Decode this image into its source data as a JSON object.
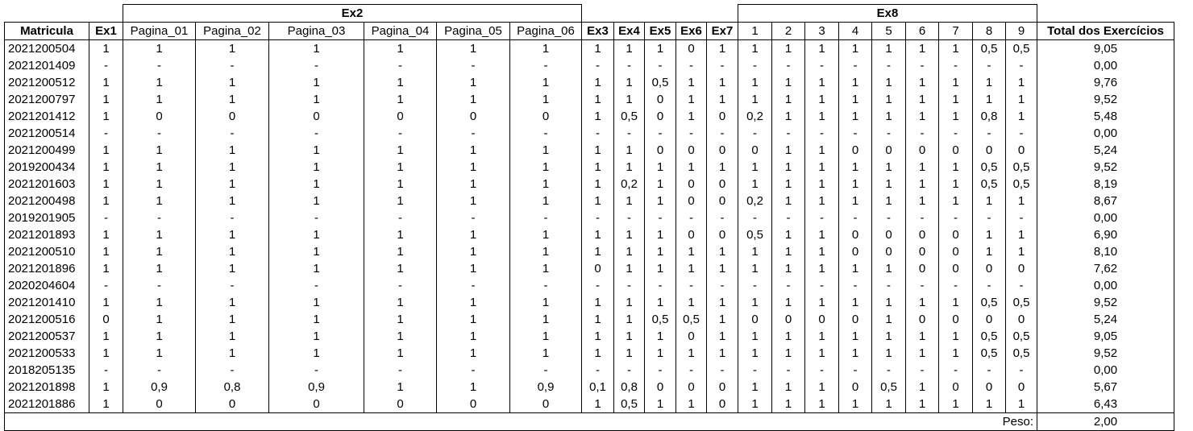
{
  "headers": {
    "ex2_group": "Ex2",
    "ex8_group": "Ex8",
    "columns": [
      "Matricula",
      "Ex1",
      "Pagina_01",
      "Pagina_02",
      "Pagina_03",
      "Pagina_04",
      "Pagina_05",
      "Pagina_06",
      "Ex3",
      "Ex4",
      "Ex5",
      "Ex6",
      "Ex7",
      "1",
      "2",
      "3",
      "4",
      "5",
      "6",
      "7",
      "8",
      "9",
      "Total dos Exercícios"
    ]
  },
  "rows": [
    [
      "2021200504",
      "1",
      "1",
      "1",
      "1",
      "1",
      "1",
      "1",
      "1",
      "1",
      "1",
      "0",
      "1",
      "1",
      "1",
      "1",
      "1",
      "1",
      "1",
      "1",
      "0,5",
      "0,5",
      "9,05"
    ],
    [
      "2021201409",
      "-",
      "-",
      "-",
      "-",
      "-",
      "-",
      "-",
      "-",
      "-",
      "-",
      "-",
      "-",
      "-",
      "-",
      "-",
      "-",
      "-",
      "-",
      "-",
      "-",
      "-",
      "0,00"
    ],
    [
      "2021200512",
      "1",
      "1",
      "1",
      "1",
      "1",
      "1",
      "1",
      "1",
      "1",
      "0,5",
      "1",
      "1",
      "1",
      "1",
      "1",
      "1",
      "1",
      "1",
      "1",
      "1",
      "1",
      "9,76"
    ],
    [
      "2021200797",
      "1",
      "1",
      "1",
      "1",
      "1",
      "1",
      "1",
      "1",
      "1",
      "0",
      "1",
      "1",
      "1",
      "1",
      "1",
      "1",
      "1",
      "1",
      "1",
      "1",
      "1",
      "9,52"
    ],
    [
      "2021201412",
      "1",
      "0",
      "0",
      "0",
      "0",
      "0",
      "0",
      "1",
      "0,5",
      "0",
      "1",
      "0",
      "0,2",
      "1",
      "1",
      "1",
      "1",
      "1",
      "1",
      "0,8",
      "1",
      "5,48"
    ],
    [
      "2021200514",
      "-",
      "-",
      "-",
      "-",
      "-",
      "-",
      "-",
      "-",
      "-",
      "-",
      "-",
      "-",
      "-",
      "-",
      "-",
      "-",
      "-",
      "-",
      "-",
      "-",
      "-",
      "0,00"
    ],
    [
      "2021200499",
      "1",
      "1",
      "1",
      "1",
      "1",
      "1",
      "1",
      "1",
      "1",
      "0",
      "0",
      "0",
      "0",
      "1",
      "1",
      "0",
      "0",
      "0",
      "0",
      "0",
      "0",
      "5,24"
    ],
    [
      "2019200434",
      "1",
      "1",
      "1",
      "1",
      "1",
      "1",
      "1",
      "1",
      "1",
      "1",
      "1",
      "1",
      "1",
      "1",
      "1",
      "1",
      "1",
      "1",
      "1",
      "0,5",
      "0,5",
      "9,52"
    ],
    [
      "2021201603",
      "1",
      "1",
      "1",
      "1",
      "1",
      "1",
      "1",
      "1",
      "0,2",
      "1",
      "0",
      "0",
      "1",
      "1",
      "1",
      "1",
      "1",
      "1",
      "1",
      "0,5",
      "0,5",
      "8,19"
    ],
    [
      "2021200498",
      "1",
      "1",
      "1",
      "1",
      "1",
      "1",
      "1",
      "1",
      "1",
      "1",
      "0",
      "0",
      "0,2",
      "1",
      "1",
      "1",
      "1",
      "1",
      "1",
      "1",
      "1",
      "8,67"
    ],
    [
      "2019201905",
      "-",
      "-",
      "-",
      "-",
      "-",
      "-",
      "-",
      "-",
      "-",
      "-",
      "-",
      "-",
      "-",
      "-",
      "-",
      "-",
      "-",
      "-",
      "-",
      "-",
      "-",
      "0,00"
    ],
    [
      "2021201893",
      "1",
      "1",
      "1",
      "1",
      "1",
      "1",
      "1",
      "1",
      "1",
      "1",
      "0",
      "0",
      "0,5",
      "1",
      "1",
      "0",
      "0",
      "0",
      "0",
      "1",
      "1",
      "6,90"
    ],
    [
      "2021200510",
      "1",
      "1",
      "1",
      "1",
      "1",
      "1",
      "1",
      "1",
      "1",
      "1",
      "1",
      "1",
      "1",
      "1",
      "1",
      "0",
      "0",
      "0",
      "0",
      "1",
      "1",
      "8,10"
    ],
    [
      "2021201896",
      "1",
      "1",
      "1",
      "1",
      "1",
      "1",
      "1",
      "0",
      "1",
      "1",
      "1",
      "1",
      "1",
      "1",
      "1",
      "1",
      "1",
      "0",
      "0",
      "0",
      "0",
      "7,62"
    ],
    [
      "2020204604",
      "-",
      "-",
      "-",
      "-",
      "-",
      "-",
      "-",
      "-",
      "-",
      "-",
      "-",
      "-",
      "-",
      "-",
      "-",
      "-",
      "-",
      "-",
      "-",
      "-",
      "-",
      "0,00"
    ],
    [
      "2021201410",
      "1",
      "1",
      "1",
      "1",
      "1",
      "1",
      "1",
      "1",
      "1",
      "1",
      "1",
      "1",
      "1",
      "1",
      "1",
      "1",
      "1",
      "1",
      "1",
      "0,5",
      "0,5",
      "9,52"
    ],
    [
      "2021200516",
      "0",
      "1",
      "1",
      "1",
      "1",
      "1",
      "1",
      "1",
      "1",
      "0,5",
      "0,5",
      "1",
      "0",
      "0",
      "0",
      "0",
      "1",
      "0",
      "0",
      "0",
      "0",
      "5,24"
    ],
    [
      "2021200537",
      "1",
      "1",
      "1",
      "1",
      "1",
      "1",
      "1",
      "1",
      "1",
      "1",
      "0",
      "1",
      "1",
      "1",
      "1",
      "1",
      "1",
      "1",
      "1",
      "0,5",
      "0,5",
      "9,05"
    ],
    [
      "2021200533",
      "1",
      "1",
      "1",
      "1",
      "1",
      "1",
      "1",
      "1",
      "1",
      "1",
      "1",
      "1",
      "1",
      "1",
      "1",
      "1",
      "1",
      "1",
      "1",
      "0,5",
      "0,5",
      "9,52"
    ],
    [
      "2018205135",
      "-",
      "-",
      "-",
      "-",
      "-",
      "-",
      "-",
      "-",
      "-",
      "-",
      "-",
      "-",
      "-",
      "-",
      "-",
      "-",
      "-",
      "-",
      "-",
      "-",
      "-",
      "0,00"
    ],
    [
      "2021201898",
      "1",
      "0,9",
      "0,8",
      "0,9",
      "1",
      "1",
      "0,9",
      "0,1",
      "0,8",
      "0",
      "0",
      "0",
      "1",
      "1",
      "1",
      "0",
      "0,5",
      "1",
      "0",
      "0",
      "0",
      "5,67"
    ],
    [
      "2021201886",
      "1",
      "0",
      "0",
      "0",
      "0",
      "0",
      "0",
      "1",
      "0,5",
      "1",
      "1",
      "0",
      "1",
      "1",
      "1",
      "1",
      "1",
      "1",
      "1",
      "1",
      "1",
      "6,43"
    ]
  ],
  "footer": {
    "peso_label": "Peso:",
    "peso_value": "2,00"
  }
}
